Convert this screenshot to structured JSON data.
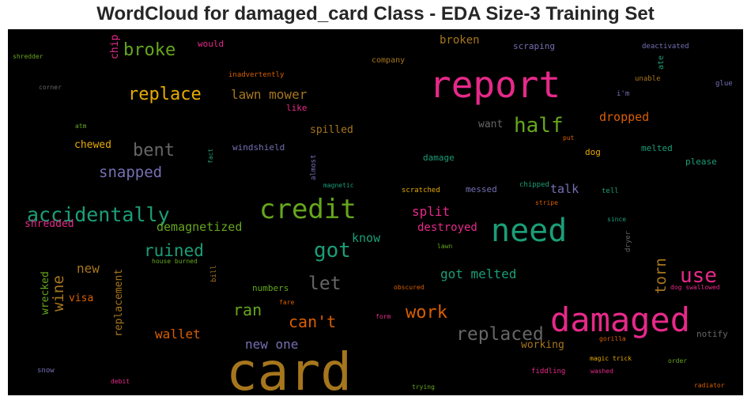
{
  "chart_data": {
    "type": "wordcloud",
    "title": "WordCloud for damaged_card Class - EDA Size-3 Training Set",
    "background": "#000000",
    "palette": {
      "pink": "#e7298a",
      "green": "#1b9e77",
      "olive": "#66a61e",
      "gold": "#a6761d",
      "mustard": "#e6ab02",
      "orange": "#d95f02",
      "purple": "#7570b3",
      "gray": "#666666"
    },
    "words": [
      {
        "text": "card",
        "color": "#a6761d"
      },
      {
        "text": "report",
        "color": "#e7298a"
      },
      {
        "text": "damaged",
        "color": "#e7298a"
      },
      {
        "text": "need",
        "color": "#1b9e77"
      },
      {
        "text": "credit",
        "color": "#66a61e"
      },
      {
        "text": "accidentally",
        "color": "#1b9e77"
      },
      {
        "text": "half",
        "color": "#66a61e"
      },
      {
        "text": "replace",
        "color": "#e6ab02"
      },
      {
        "text": "broke",
        "color": "#66a61e"
      },
      {
        "text": "bent",
        "color": "#666666"
      },
      {
        "text": "got",
        "color": "#1b9e77"
      },
      {
        "text": "use",
        "color": "#e7298a"
      },
      {
        "text": "replaced",
        "color": "#666666"
      },
      {
        "text": "work",
        "color": "#d95f02"
      },
      {
        "text": "ruined",
        "color": "#1b9e77"
      },
      {
        "text": "let",
        "color": "#666666"
      },
      {
        "text": "snapped",
        "color": "#7570b3"
      },
      {
        "text": "can't",
        "color": "#d95f02"
      },
      {
        "text": "ran",
        "color": "#66a61e"
      },
      {
        "text": "wine",
        "color": "#a6761d"
      },
      {
        "text": "torn",
        "color": "#a6761d"
      },
      {
        "text": "lawn mower",
        "color": "#a6761d"
      },
      {
        "text": "got melted",
        "color": "#1b9e77"
      },
      {
        "text": "demagnetized",
        "color": "#66a61e"
      },
      {
        "text": "split",
        "color": "#e7298a"
      },
      {
        "text": "wallet",
        "color": "#d95f02"
      },
      {
        "text": "new one",
        "color": "#7570b3"
      },
      {
        "text": "dropped",
        "color": "#d95f02"
      },
      {
        "text": "broken",
        "color": "#a6761d"
      },
      {
        "text": "new",
        "color": "#a6761d"
      },
      {
        "text": "know",
        "color": "#1b9e77"
      },
      {
        "text": "destroyed",
        "color": "#e7298a"
      },
      {
        "text": "talk",
        "color": "#7570b3"
      },
      {
        "text": "working",
        "color": "#a6761d"
      },
      {
        "text": "spilled",
        "color": "#a6761d"
      },
      {
        "text": "shredded",
        "color": "#e7298a"
      },
      {
        "text": "chewed",
        "color": "#e6ab02"
      },
      {
        "text": "want",
        "color": "#666666"
      },
      {
        "text": "replacement",
        "color": "#a6761d"
      },
      {
        "text": "wrecked",
        "color": "#66a61e"
      },
      {
        "text": "visa",
        "color": "#d95f02"
      },
      {
        "text": "chip",
        "color": "#e7298a"
      },
      {
        "text": "windshield",
        "color": "#7570b3"
      },
      {
        "text": "melted",
        "color": "#1b9e77"
      },
      {
        "text": "please",
        "color": "#1b9e77"
      },
      {
        "text": "dog",
        "color": "#e6ab02"
      },
      {
        "text": "damage",
        "color": "#1b9e77"
      },
      {
        "text": "messed",
        "color": "#7570b3"
      },
      {
        "text": "scraping",
        "color": "#7570b3"
      },
      {
        "text": "numbers",
        "color": "#66a61e"
      },
      {
        "text": "notify",
        "color": "#666666"
      },
      {
        "text": "would",
        "color": "#e7298a"
      },
      {
        "text": "like",
        "color": "#e7298a"
      },
      {
        "text": "company",
        "color": "#a6761d"
      },
      {
        "text": "deactivated",
        "color": "#7570b3"
      },
      {
        "text": "inadvertently",
        "color": "#d95f02"
      },
      {
        "text": "ate",
        "color": "#1b9e77"
      },
      {
        "text": "unable",
        "color": "#a6761d"
      },
      {
        "text": "glue",
        "color": "#7570b3"
      },
      {
        "text": "i'm",
        "color": "#7570b3"
      },
      {
        "text": "put",
        "color": "#d95f02"
      },
      {
        "text": "scratched",
        "color": "#e6ab02"
      },
      {
        "text": "chipped",
        "color": "#1b9e77"
      },
      {
        "text": "tell",
        "color": "#1b9e77"
      },
      {
        "text": "stripe",
        "color": "#d95f02"
      },
      {
        "text": "since",
        "color": "#1b9e77"
      },
      {
        "text": "dryer",
        "color": "#666666"
      },
      {
        "text": "magnetic",
        "color": "#1b9e77"
      },
      {
        "text": "almost",
        "color": "#7570b3"
      },
      {
        "text": "fact",
        "color": "#1b9e77"
      },
      {
        "text": "atm",
        "color": "#66a61e"
      },
      {
        "text": "shredder",
        "color": "#66a61e"
      },
      {
        "text": "corner",
        "color": "#666666"
      },
      {
        "text": "house burned",
        "color": "#66a61e"
      },
      {
        "text": "bill",
        "color": "#a6761d"
      },
      {
        "text": "fare",
        "color": "#d95f02"
      },
      {
        "text": "form",
        "color": "#e7298a"
      },
      {
        "text": "obscured",
        "color": "#d95f02"
      },
      {
        "text": "lawn",
        "color": "#66a61e"
      },
      {
        "text": "dog swallowed",
        "color": "#e7298a"
      },
      {
        "text": "gorilla",
        "color": "#d95f02"
      },
      {
        "text": "magic trick",
        "color": "#e6ab02"
      },
      {
        "text": "washed",
        "color": "#e7298a"
      },
      {
        "text": "order",
        "color": "#66a61e"
      },
      {
        "text": "fiddling",
        "color": "#e7298a"
      },
      {
        "text": "radiator",
        "color": "#d95f02"
      },
      {
        "text": "trying",
        "color": "#66a61e"
      },
      {
        "text": "snow",
        "color": "#7570b3"
      },
      {
        "text": "debit",
        "color": "#e7298a"
      }
    ]
  }
}
